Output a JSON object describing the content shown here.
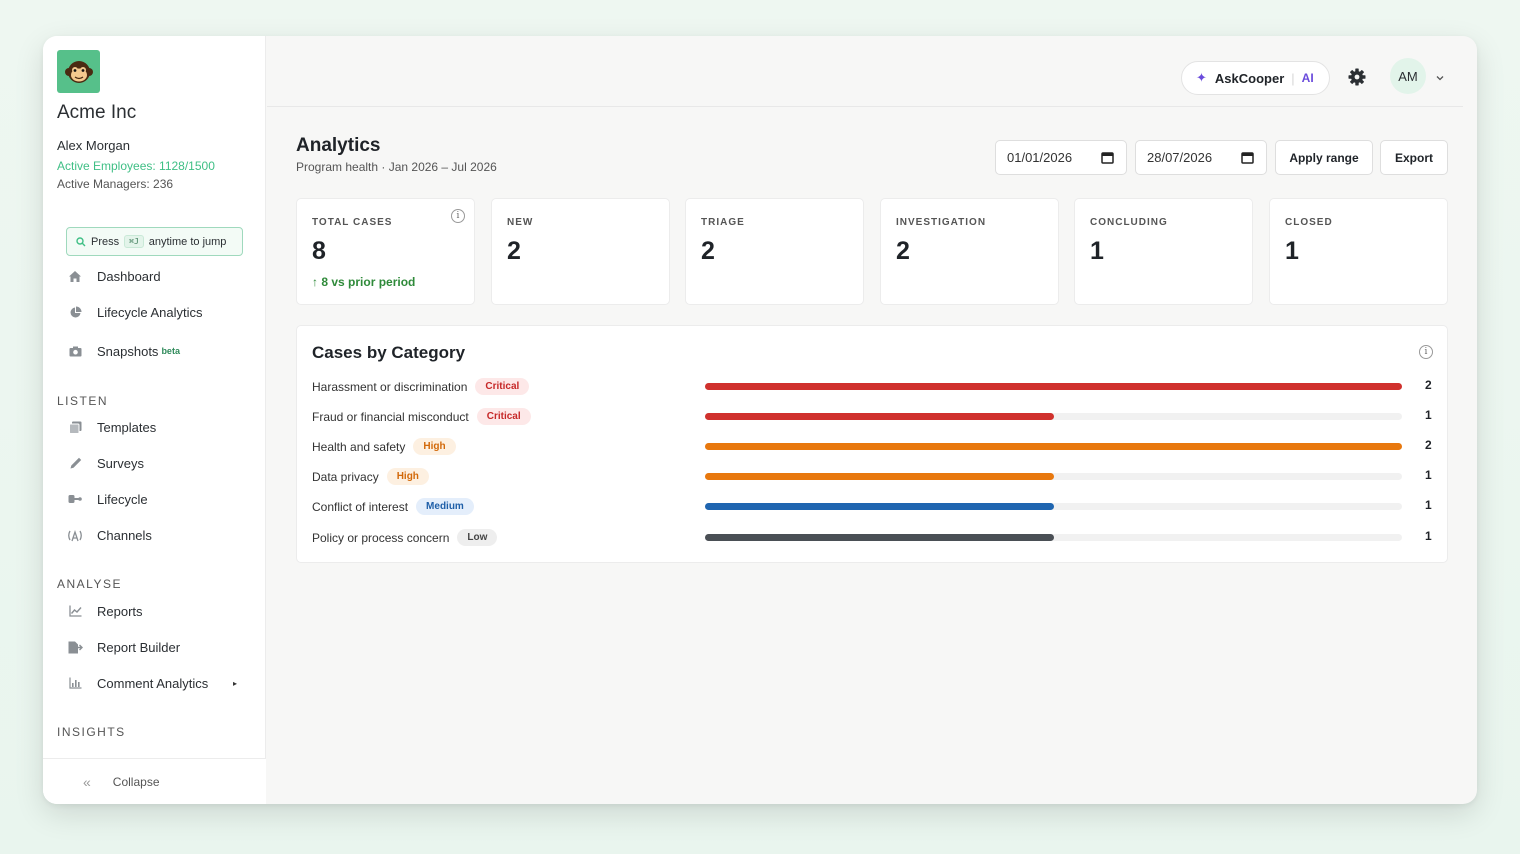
{
  "org": {
    "name": "Acme Inc"
  },
  "user": {
    "name": "Alex Morgan",
    "active_employees": "Active Employees: 1128/1500",
    "active_managers": "Active Managers: 236"
  },
  "jump": {
    "prefix": "Press",
    "shortcut": "⌘J",
    "suffix": "anytime to jump"
  },
  "nav": {
    "top": [
      {
        "label": "Dashboard",
        "icon": "home-icon"
      },
      {
        "label": "Lifecycle Analytics",
        "icon": "pie-chart-icon"
      },
      {
        "label": "Snapshots",
        "icon": "camera-icon",
        "tag": "beta"
      }
    ],
    "listen_label": "LISTEN",
    "listen": [
      {
        "label": "Templates",
        "icon": "templates-icon"
      },
      {
        "label": "Surveys",
        "icon": "pen-icon"
      },
      {
        "label": "Lifecycle",
        "icon": "route-icon"
      },
      {
        "label": "Channels",
        "icon": "broadcast-icon"
      }
    ],
    "analyse_label": "ANALYSE",
    "analyse": [
      {
        "label": "Reports",
        "icon": "line-chart-icon"
      },
      {
        "label": "Report Builder",
        "icon": "file-export-icon"
      },
      {
        "label": "Comment Analytics",
        "icon": "bar-chart-icon"
      }
    ],
    "insights_label": "INSIGHTS",
    "collapse": "Collapse"
  },
  "topbar": {
    "ask": "AskCooper",
    "ai": "AI",
    "avatar": "AM"
  },
  "page": {
    "title": "Analytics",
    "subtitle": "Program health · Jan 2026 – Jul 2026",
    "date_from": "01/01/2026",
    "date_to": "28/07/2026",
    "apply": "Apply range",
    "export": "Export"
  },
  "stats": [
    {
      "label": "TOTAL CASES",
      "value": "8",
      "delta": "↑ 8 vs prior period"
    },
    {
      "label": "NEW",
      "value": "2"
    },
    {
      "label": "TRIAGE",
      "value": "2"
    },
    {
      "label": "INVESTIGATION",
      "value": "2"
    },
    {
      "label": "CONCLUDING",
      "value": "1"
    },
    {
      "label": "CLOSED",
      "value": "1"
    }
  ],
  "categories": {
    "title": "Cases by Category",
    "max": 2,
    "items": [
      {
        "name": "Harassment or discrimination",
        "severity": "Critical",
        "count": 2,
        "color": "#d0312d"
      },
      {
        "name": "Fraud or financial misconduct",
        "severity": "Critical",
        "count": 1,
        "color": "#d0312d"
      },
      {
        "name": "Health and safety",
        "severity": "High",
        "count": 2,
        "color": "#e8780e"
      },
      {
        "name": "Data privacy",
        "severity": "High",
        "count": 1,
        "color": "#e8780e"
      },
      {
        "name": "Conflict of interest",
        "severity": "Medium",
        "count": 1,
        "color": "#1f65b0"
      },
      {
        "name": "Policy or process concern",
        "severity": "Low",
        "count": 1,
        "color": "#4a4f55"
      }
    ]
  },
  "severity_styles": {
    "Critical": {
      "bg": "#fde8e8",
      "fg": "#c62828"
    },
    "High": {
      "bg": "#fdf0e1",
      "fg": "#d2690a"
    },
    "Medium": {
      "bg": "#e4eefb",
      "fg": "#1f5fa8"
    },
    "Low": {
      "bg": "#eeeeee",
      "fg": "#444444"
    }
  }
}
